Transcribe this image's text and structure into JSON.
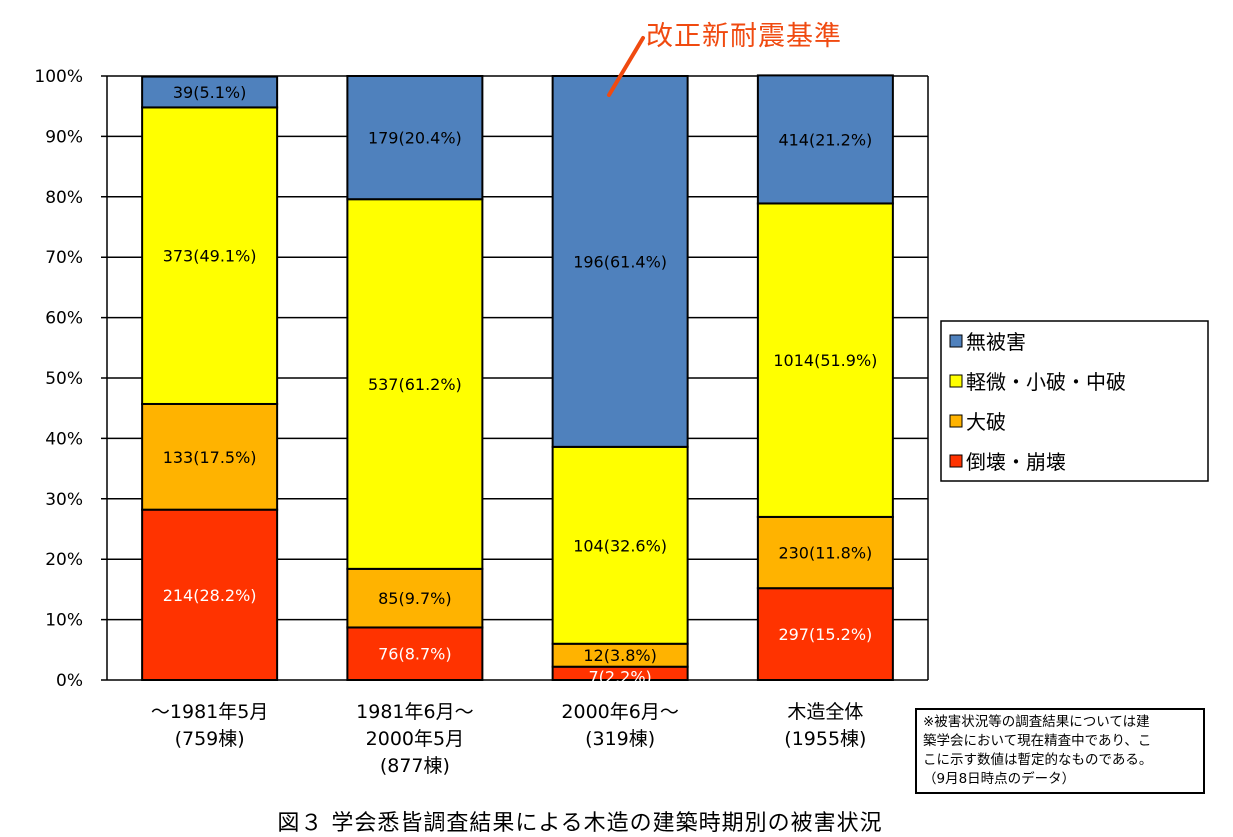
{
  "chart_data": {
    "type": "stacked-bar-100",
    "ylim": [
      0,
      100
    ],
    "y_ticks": [
      "0%",
      "10%",
      "20%",
      "30%",
      "40%",
      "50%",
      "60%",
      "70%",
      "80%",
      "90%",
      "100%"
    ],
    "grid": true,
    "legend_position": "right",
    "categories": [
      {
        "line1": "～1981年5月",
        "line2": "(759棟)",
        "line3": ""
      },
      {
        "line1": "1981年6月～",
        "line2": "2000年5月",
        "line3": "(877棟)"
      },
      {
        "line1": "2000年6月～",
        "line2": "(319棟)",
        "line3": ""
      },
      {
        "line1": "木造全体",
        "line2": "(1955棟)",
        "line3": ""
      }
    ],
    "series": [
      {
        "name": "倒壊・崩壊",
        "color": "#ff3300",
        "label_color": "#ffffff",
        "values": [
          28.2,
          8.7,
          2.2,
          15.2
        ],
        "counts": [
          214,
          76,
          7,
          297
        ],
        "labels": [
          "214(28.2%)",
          "76(8.7%)",
          "7(2.2%)",
          "297(15.2%)"
        ]
      },
      {
        "name": "大破",
        "color": "#ffb300",
        "label_color": "#000000",
        "values": [
          17.5,
          9.7,
          3.8,
          11.8
        ],
        "counts": [
          133,
          85,
          12,
          230
        ],
        "labels": [
          "133(17.5%)",
          "85(9.7%)",
          "12(3.8%)",
          "230(11.8%)"
        ]
      },
      {
        "name": "軽微・小破・中破",
        "color": "#ffff00",
        "label_color": "#000000",
        "values": [
          49.1,
          61.2,
          32.6,
          51.9
        ],
        "counts": [
          373,
          537,
          104,
          1014
        ],
        "labels": [
          "373(49.1%)",
          "537(61.2%)",
          "104(32.6%)",
          "1014(51.9%)"
        ]
      },
      {
        "name": "無被害",
        "color": "#4f81bd",
        "label_color": "#000000",
        "values": [
          5.1,
          20.4,
          61.4,
          21.2
        ],
        "counts": [
          39,
          179,
          196,
          414
        ],
        "labels": [
          "39(5.1%)",
          "179(20.4%)",
          "196(61.4%)",
          "414(21.2%)"
        ]
      }
    ],
    "legend_order": [
      "無被害",
      "軽微・小破・中破",
      "大破",
      "倒壊・崩壊"
    ],
    "annotation": {
      "text": "改正新耐震基準",
      "color": "#f04a10",
      "target_category": "2000年6月～"
    }
  },
  "note": {
    "lines": [
      "※被害状況等の調査結果については建",
      "築学会において現在精査中であり、こ",
      "こに示す数値は暫定的なものである。",
      "（9月8日時点のデータ）"
    ]
  },
  "caption": "図３ 学会悉皆調査結果による木造の建築時期別の被害状況"
}
